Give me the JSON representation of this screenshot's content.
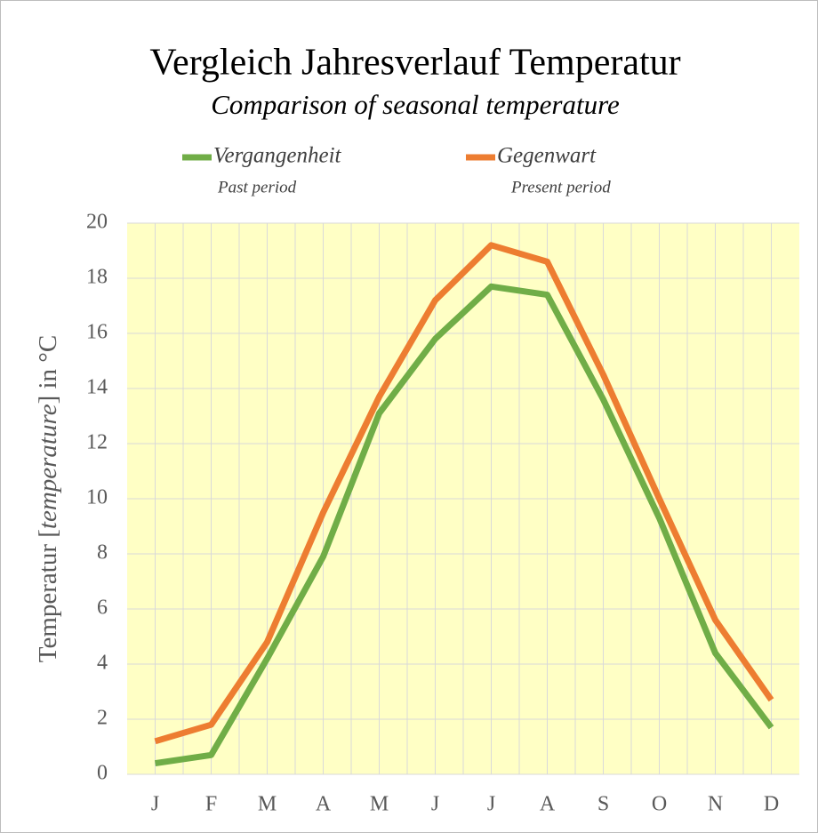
{
  "chart_data": {
    "type": "line",
    "title": "Vergleich Jahresverlauf Temperatur",
    "subtitle": "Comparison of seasonal temperature",
    "ylabel": [
      "Temperatur [",
      "temperature",
      "] in °C"
    ],
    "categories": [
      "J",
      "F",
      "M",
      "A",
      "M",
      "J",
      "J",
      "A",
      "S",
      "O",
      "N",
      "D"
    ],
    "series": [
      {
        "name": "Vergangenheit",
        "name_en": "Past period",
        "color": "#70ad47",
        "values": [
          0.4,
          0.7,
          4.2,
          7.9,
          13.1,
          15.8,
          17.7,
          17.4,
          13.6,
          9.3,
          4.4,
          1.7
        ]
      },
      {
        "name": "Gegenwart",
        "name_en": "Present period",
        "color": "#ed7d31",
        "values": [
          1.2,
          1.8,
          4.8,
          9.5,
          13.7,
          17.2,
          19.2,
          18.6,
          14.5,
          10.0,
          5.6,
          2.7
        ]
      }
    ],
    "ylim": [
      0,
      20
    ],
    "yticks": [
      0,
      2,
      4,
      6,
      8,
      10,
      12,
      14,
      16,
      18,
      20
    ],
    "grid": true,
    "plot_background": "#ffffc5",
    "legend": "top"
  }
}
